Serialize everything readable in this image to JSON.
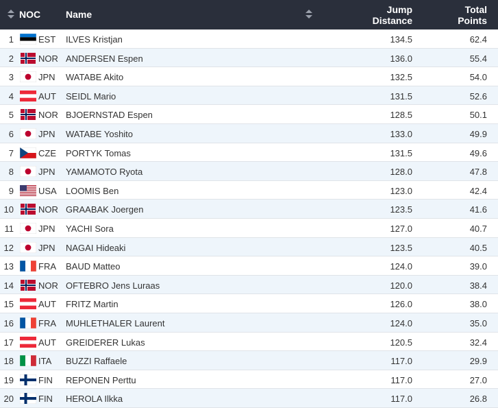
{
  "header": {
    "noc": "NOC",
    "name": "Name",
    "jump_line1": "Jump",
    "jump_line2": "Distance",
    "total_line1": "Total",
    "total_line2": "Points"
  },
  "rows": [
    {
      "rank": "1",
      "noc": "EST",
      "flag": "est-flag-icon",
      "name": "ILVES Kristjan",
      "jump": "134.5",
      "points": "62.4"
    },
    {
      "rank": "2",
      "noc": "NOR",
      "flag": "nor-flag-icon",
      "name": "ANDERSEN Espen",
      "jump": "136.0",
      "points": "55.4"
    },
    {
      "rank": "3",
      "noc": "JPN",
      "flag": "jpn-flag-icon",
      "name": "WATABE Akito",
      "jump": "132.5",
      "points": "54.0"
    },
    {
      "rank": "4",
      "noc": "AUT",
      "flag": "aut-flag-icon",
      "name": "SEIDL Mario",
      "jump": "131.5",
      "points": "52.6"
    },
    {
      "rank": "5",
      "noc": "NOR",
      "flag": "nor-flag-icon",
      "name": "BJOERNSTAD Espen",
      "jump": "128.5",
      "points": "50.1"
    },
    {
      "rank": "6",
      "noc": "JPN",
      "flag": "jpn-flag-icon",
      "name": "WATABE Yoshito",
      "jump": "133.0",
      "points": "49.9"
    },
    {
      "rank": "7",
      "noc": "CZE",
      "flag": "cze-flag-icon",
      "name": "PORTYK Tomas",
      "jump": "131.5",
      "points": "49.6"
    },
    {
      "rank": "8",
      "noc": "JPN",
      "flag": "jpn-flag-icon",
      "name": "YAMAMOTO Ryota",
      "jump": "128.0",
      "points": "47.8"
    },
    {
      "rank": "9",
      "noc": "USA",
      "flag": "usa-flag-icon",
      "name": "LOOMIS Ben",
      "jump": "123.0",
      "points": "42.4"
    },
    {
      "rank": "10",
      "noc": "NOR",
      "flag": "nor-flag-icon",
      "name": "GRAABAK Joergen",
      "jump": "123.5",
      "points": "41.6"
    },
    {
      "rank": "11",
      "noc": "JPN",
      "flag": "jpn-flag-icon",
      "name": "YACHI Sora",
      "jump": "127.0",
      "points": "40.7"
    },
    {
      "rank": "12",
      "noc": "JPN",
      "flag": "jpn-flag-icon",
      "name": "NAGAI Hideaki",
      "jump": "123.5",
      "points": "40.5"
    },
    {
      "rank": "13",
      "noc": "FRA",
      "flag": "fra-flag-icon",
      "name": "BAUD Matteo",
      "jump": "124.0",
      "points": "39.0"
    },
    {
      "rank": "14",
      "noc": "NOR",
      "flag": "nor-flag-icon",
      "name": "OFTEBRO Jens Luraas",
      "jump": "120.0",
      "points": "38.4"
    },
    {
      "rank": "15",
      "noc": "AUT",
      "flag": "aut-flag-icon",
      "name": "FRITZ Martin",
      "jump": "126.0",
      "points": "38.0"
    },
    {
      "rank": "16",
      "noc": "FRA",
      "flag": "fra-flag-icon",
      "name": "MUHLETHALER Laurent",
      "jump": "124.0",
      "points": "35.0"
    },
    {
      "rank": "17",
      "noc": "AUT",
      "flag": "aut-flag-icon",
      "name": "GREIDERER Lukas",
      "jump": "120.5",
      "points": "32.4"
    },
    {
      "rank": "18",
      "noc": "ITA",
      "flag": "ita-flag-icon",
      "name": "BUZZI Raffaele",
      "jump": "117.0",
      "points": "29.9"
    },
    {
      "rank": "19",
      "noc": "FIN",
      "flag": "fin-flag-icon",
      "name": "REPONEN Perttu",
      "jump": "117.0",
      "points": "27.0"
    },
    {
      "rank": "20",
      "noc": "FIN",
      "flag": "fin-flag-icon",
      "name": "HEROLA Ilkka",
      "jump": "117.0",
      "points": "26.8"
    }
  ]
}
